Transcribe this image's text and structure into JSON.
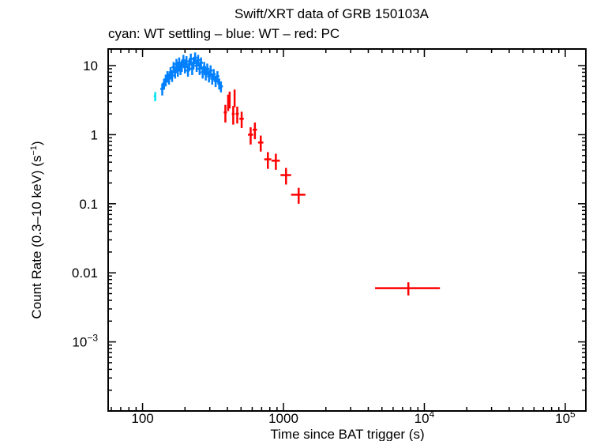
{
  "chart_data": {
    "type": "scatter",
    "title": "Swift/XRT data of GRB 150103A",
    "subtitle": "cyan: WT settling – blue: WT – red: PC",
    "xlabel": "Time since BAT trigger (s)",
    "ylabel": "Count Rate (0.3–10 keV) (s",
    "ylabel_sup": "−1",
    "ylabel_end": ")",
    "xscale": "log",
    "yscale": "log",
    "xlim": [
      57,
      140000
    ],
    "ylim": [
      0.0001,
      17.4
    ],
    "x_ticks": [
      {
        "value": 100,
        "base": "100",
        "exp": ""
      },
      {
        "value": 1000,
        "base": "1000",
        "exp": ""
      },
      {
        "value": 10000,
        "base": "10",
        "exp": "4"
      },
      {
        "value": 100000,
        "base": "10",
        "exp": "5"
      }
    ],
    "y_ticks": [
      {
        "value": 10,
        "base": "10",
        "exp": ""
      },
      {
        "value": 1,
        "base": "1",
        "exp": ""
      },
      {
        "value": 0.1,
        "base": "0.1",
        "exp": ""
      },
      {
        "value": 0.01,
        "base": "0.01",
        "exp": ""
      },
      {
        "value": 0.001,
        "base": "10",
        "exp": "−3"
      }
    ],
    "series": [
      {
        "name": "WT settling",
        "color": "#00e5ee",
        "points": [
          [
            123,
            3.6,
            0.55,
            3,
            0.6
          ]
        ]
      },
      {
        "name": "WT",
        "color": "#0080ff",
        "points": [
          [
            138,
            4.6,
            0.9
          ],
          [
            142,
            5.5,
            1.0
          ],
          [
            146,
            6.2,
            1.2
          ],
          [
            150,
            7.0,
            1.3
          ],
          [
            154,
            6.5,
            1.2
          ],
          [
            158,
            8.0,
            1.5
          ],
          [
            162,
            7.2,
            1.4
          ],
          [
            166,
            9.5,
            1.8
          ],
          [
            170,
            8.0,
            1.5
          ],
          [
            174,
            10.5,
            2.0
          ],
          [
            178,
            8.5,
            1.6
          ],
          [
            182,
            11.0,
            2.1
          ],
          [
            186,
            9.0,
            1.7
          ],
          [
            190,
            10.0,
            1.9
          ],
          [
            195,
            12.0,
            2.3
          ],
          [
            200,
            9.5,
            1.8
          ],
          [
            205,
            11.5,
            2.2
          ],
          [
            210,
            8.5,
            1.6
          ],
          [
            215,
            10.5,
            2.0
          ],
          [
            220,
            12.5,
            2.4
          ],
          [
            225,
            9.0,
            1.7
          ],
          [
            230,
            11.0,
            2.1
          ],
          [
            236,
            13.0,
            2.5
          ],
          [
            242,
            10.0,
            1.9
          ],
          [
            248,
            12.0,
            2.3
          ],
          [
            254,
            9.0,
            1.7
          ],
          [
            260,
            11.0,
            2.1
          ],
          [
            267,
            8.0,
            1.5
          ],
          [
            274,
            9.5,
            1.8
          ],
          [
            281,
            7.5,
            1.4
          ],
          [
            288,
            9.0,
            1.7
          ],
          [
            296,
            7.0,
            1.3
          ],
          [
            304,
            8.5,
            1.6
          ],
          [
            312,
            6.5,
            1.2
          ],
          [
            320,
            7.5,
            1.4
          ],
          [
            330,
            6.0,
            1.1
          ],
          [
            340,
            7.0,
            1.3
          ],
          [
            350,
            5.5,
            1.0
          ],
          [
            360,
            5.0,
            0.9
          ]
        ]
      },
      {
        "name": "PC",
        "color": "#ff0000",
        "points": [
          [
            387,
            2.1,
            0.6,
            10,
            10
          ],
          [
            405,
            3.0,
            0.8,
            6,
            6
          ],
          [
            415,
            3.3,
            0.9,
            6,
            6
          ],
          [
            440,
            2.0,
            0.6,
            10,
            10
          ],
          [
            450,
            3.5,
            1.0,
            6,
            6
          ],
          [
            470,
            2.0,
            0.55,
            12,
            12
          ],
          [
            505,
            1.7,
            0.45,
            18,
            18
          ],
          [
            585,
            1.0,
            0.28,
            25,
            25
          ],
          [
            627,
            1.18,
            0.32,
            22,
            22
          ],
          [
            690,
            0.77,
            0.2,
            30,
            30
          ],
          [
            775,
            0.44,
            0.12,
            45,
            45
          ],
          [
            883,
            0.42,
            0.11,
            60,
            60
          ],
          [
            1043,
            0.26,
            0.07,
            90,
            90
          ],
          [
            1282,
            0.135,
            0.035,
            150,
            150
          ],
          [
            7700,
            0.006,
            0.0013,
            3230,
            5200
          ]
        ]
      }
    ]
  }
}
